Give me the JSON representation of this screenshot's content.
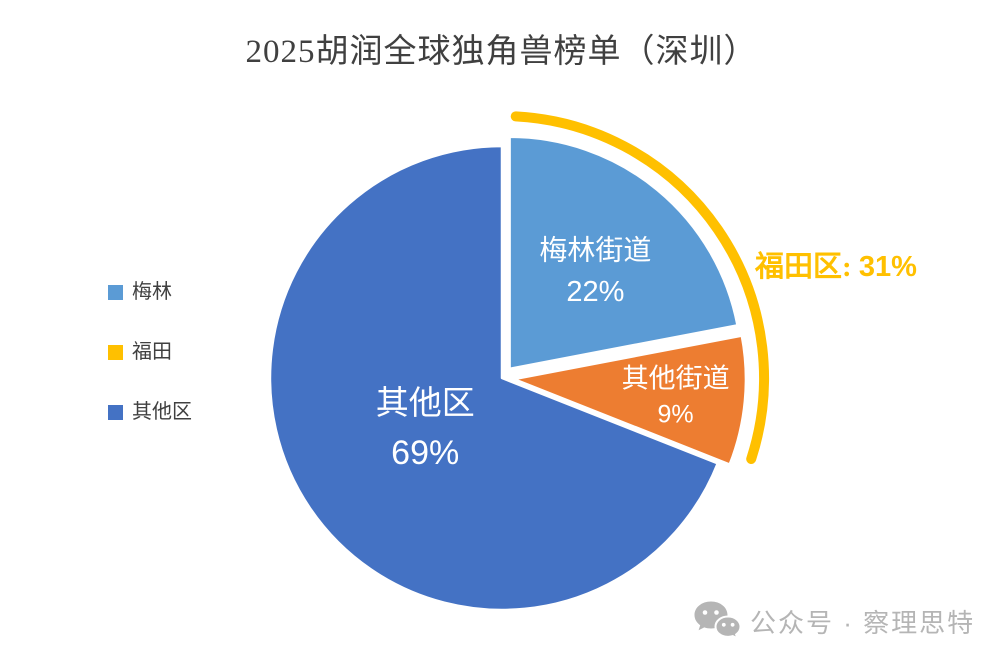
{
  "page": {
    "background": "#FFFFFF"
  },
  "title": {
    "text": "2025胡润全球独角兽榜单（深圳）",
    "color": "#404040"
  },
  "legend": {
    "position": "left",
    "items": [
      {
        "label": "梅林",
        "color": "#5B9BD5"
      },
      {
        "label": "福田",
        "color": "#FFC000"
      },
      {
        "label": "其他区",
        "color": "#4472C4"
      }
    ]
  },
  "chart_data": {
    "type": "pie",
    "title": "2025胡润全球独角兽榜单（深圳）",
    "unit": "%",
    "start_angle_deg": 0,
    "direction": "clockwise",
    "series": [
      {
        "name": "梅林街道",
        "value": 22,
        "color": "#5B9BD5",
        "exploded": true,
        "label_color": "#FFFFFF"
      },
      {
        "name": "其他街道",
        "value": 9,
        "color": "#ED7D31",
        "exploded": true,
        "label_color": "#FFFFFF"
      },
      {
        "name": "其他区",
        "value": 69,
        "color": "#4472C4",
        "exploded": false,
        "label_color": "#FFFFFF"
      }
    ],
    "annotation": {
      "prefix": "福田区: ",
      "value_text": "31%",
      "full_text": "福田区: 31%",
      "color": "#FFC000",
      "arc_color": "#FFC000",
      "covers_slices": [
        "梅林街道",
        "其他街道"
      ]
    },
    "legend_position": "left",
    "grid": false
  },
  "watermark": {
    "text": "公众号 · 察理思特",
    "icon": "wechat-icon",
    "color": "#B5B5B5"
  }
}
